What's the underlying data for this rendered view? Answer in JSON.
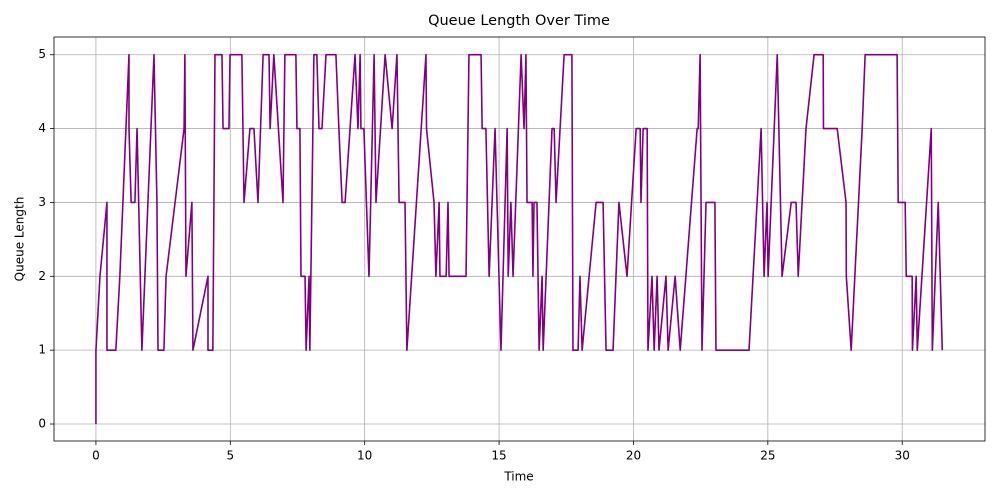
{
  "chart_data": {
    "type": "line",
    "title": "Queue Length Over Time",
    "x_label": "Time",
    "y_label": "Queue Length",
    "x": [
      0,
      0,
      0.15,
      0.41,
      0.41,
      0.74,
      0.89,
      1.23,
      1.23,
      1.31,
      1.45,
      1.53,
      1.71,
      2.16,
      2.27,
      2.31,
      2.53,
      2.61,
      3.28,
      3.31,
      3.35,
      3.57,
      3.61,
      4.17,
      4.17,
      4.35,
      4.43,
      4.69,
      4.73,
      4.95,
      4.99,
      5.43,
      5.51,
      5.73,
      5.88,
      6.03,
      6.22,
      6.44,
      6.48,
      6.62,
      6.96,
      7.03,
      7.44,
      7.48,
      7.59,
      7.63,
      7.78,
      7.82,
      7.93,
      7.96,
      8.11,
      8.22,
      8.3,
      8.41,
      8.56,
      8.93,
      9.04,
      9.16,
      9.27,
      9.64,
      9.75,
      9.83,
      9.86,
      9.97,
      10.16,
      10.35,
      10.42,
      10.76,
      11.02,
      11.2,
      11.28,
      11.5,
      11.57,
      12.28,
      12.3,
      12.58,
      12.65,
      12.77,
      12.8,
      13.03,
      13.1,
      13.14,
      13.77,
      13.88,
      14.33,
      14.37,
      14.51,
      14.63,
      14.85,
      15.07,
      15.3,
      15.34,
      15.44,
      15.52,
      15.82,
      15.93,
      16.0,
      16.04,
      16.23,
      16.26,
      16.3,
      16.41,
      16.49,
      16.6,
      16.64,
      16.97,
      17.05,
      17.12,
      17.42,
      17.71,
      17.75,
      17.94,
      18.01,
      18.09,
      18.61,
      18.87,
      18.98,
      19.24,
      19.46,
      19.76,
      20.1,
      20.25,
      20.28,
      20.36,
      20.51,
      20.54,
      20.69,
      20.77,
      20.88,
      20.95,
      21.21,
      21.29,
      21.55,
      21.74,
      22.37,
      22.41,
      22.48,
      22.55,
      22.7,
      23.03,
      23.07,
      24.3,
      24.75,
      24.86,
      24.97,
      25.01,
      25.35,
      25.53,
      25.87,
      26.05,
      26.13,
      26.42,
      26.72,
      27.06,
      27.07,
      27.58,
      27.91,
      27.92,
      28.1,
      28.51,
      28.62,
      29.81,
      29.85,
      30.11,
      30.15,
      30.37,
      30.38,
      30.52,
      30.56,
      31.08,
      31.12,
      31.34,
      31.49
    ],
    "values": [
      0,
      1,
      2,
      3,
      1,
      1,
      2,
      5,
      4,
      3,
      3,
      4,
      1,
      5,
      3,
      1,
      1,
      2,
      4,
      5,
      2,
      3,
      1,
      2,
      1,
      1,
      5,
      5,
      4,
      4,
      5,
      5,
      3,
      4,
      4,
      3,
      5,
      5,
      4,
      5,
      3,
      5,
      5,
      4,
      4,
      2,
      2,
      1,
      2,
      1,
      5,
      5,
      4,
      4,
      5,
      5,
      4,
      3,
      3,
      5,
      4,
      5,
      4,
      4,
      2,
      5,
      3,
      5,
      4,
      5,
      3,
      3,
      1,
      5,
      4,
      3,
      2,
      3,
      2,
      2,
      3,
      2,
      2,
      5,
      5,
      4,
      4,
      2,
      4,
      1,
      4,
      2,
      3,
      2,
      5,
      4,
      5,
      3,
      3,
      2,
      3,
      3,
      1,
      2,
      1,
      4,
      4,
      3,
      5,
      5,
      1,
      1,
      2,
      1,
      3,
      3,
      1,
      1,
      3,
      2,
      4,
      4,
      3,
      4,
      4,
      1,
      2,
      1,
      2,
      1,
      2,
      1,
      2,
      1,
      4,
      4,
      5,
      1,
      3,
      3,
      1,
      1,
      4,
      2,
      3,
      2,
      5,
      2,
      3,
      3,
      2,
      4,
      5,
      5,
      4,
      4,
      3,
      2,
      1,
      4,
      5,
      5,
      3,
      3,
      2,
      2,
      1,
      2,
      1,
      4,
      1,
      3,
      1
    ],
    "color": "#800080",
    "xlim": [
      -1.56,
      33.08
    ],
    "ylim": [
      -0.23,
      5.24
    ],
    "xticks": [
      0,
      5,
      10,
      15,
      20,
      25,
      30
    ],
    "yticks": [
      0,
      1,
      2,
      3,
      4,
      5
    ],
    "grid": true
  }
}
